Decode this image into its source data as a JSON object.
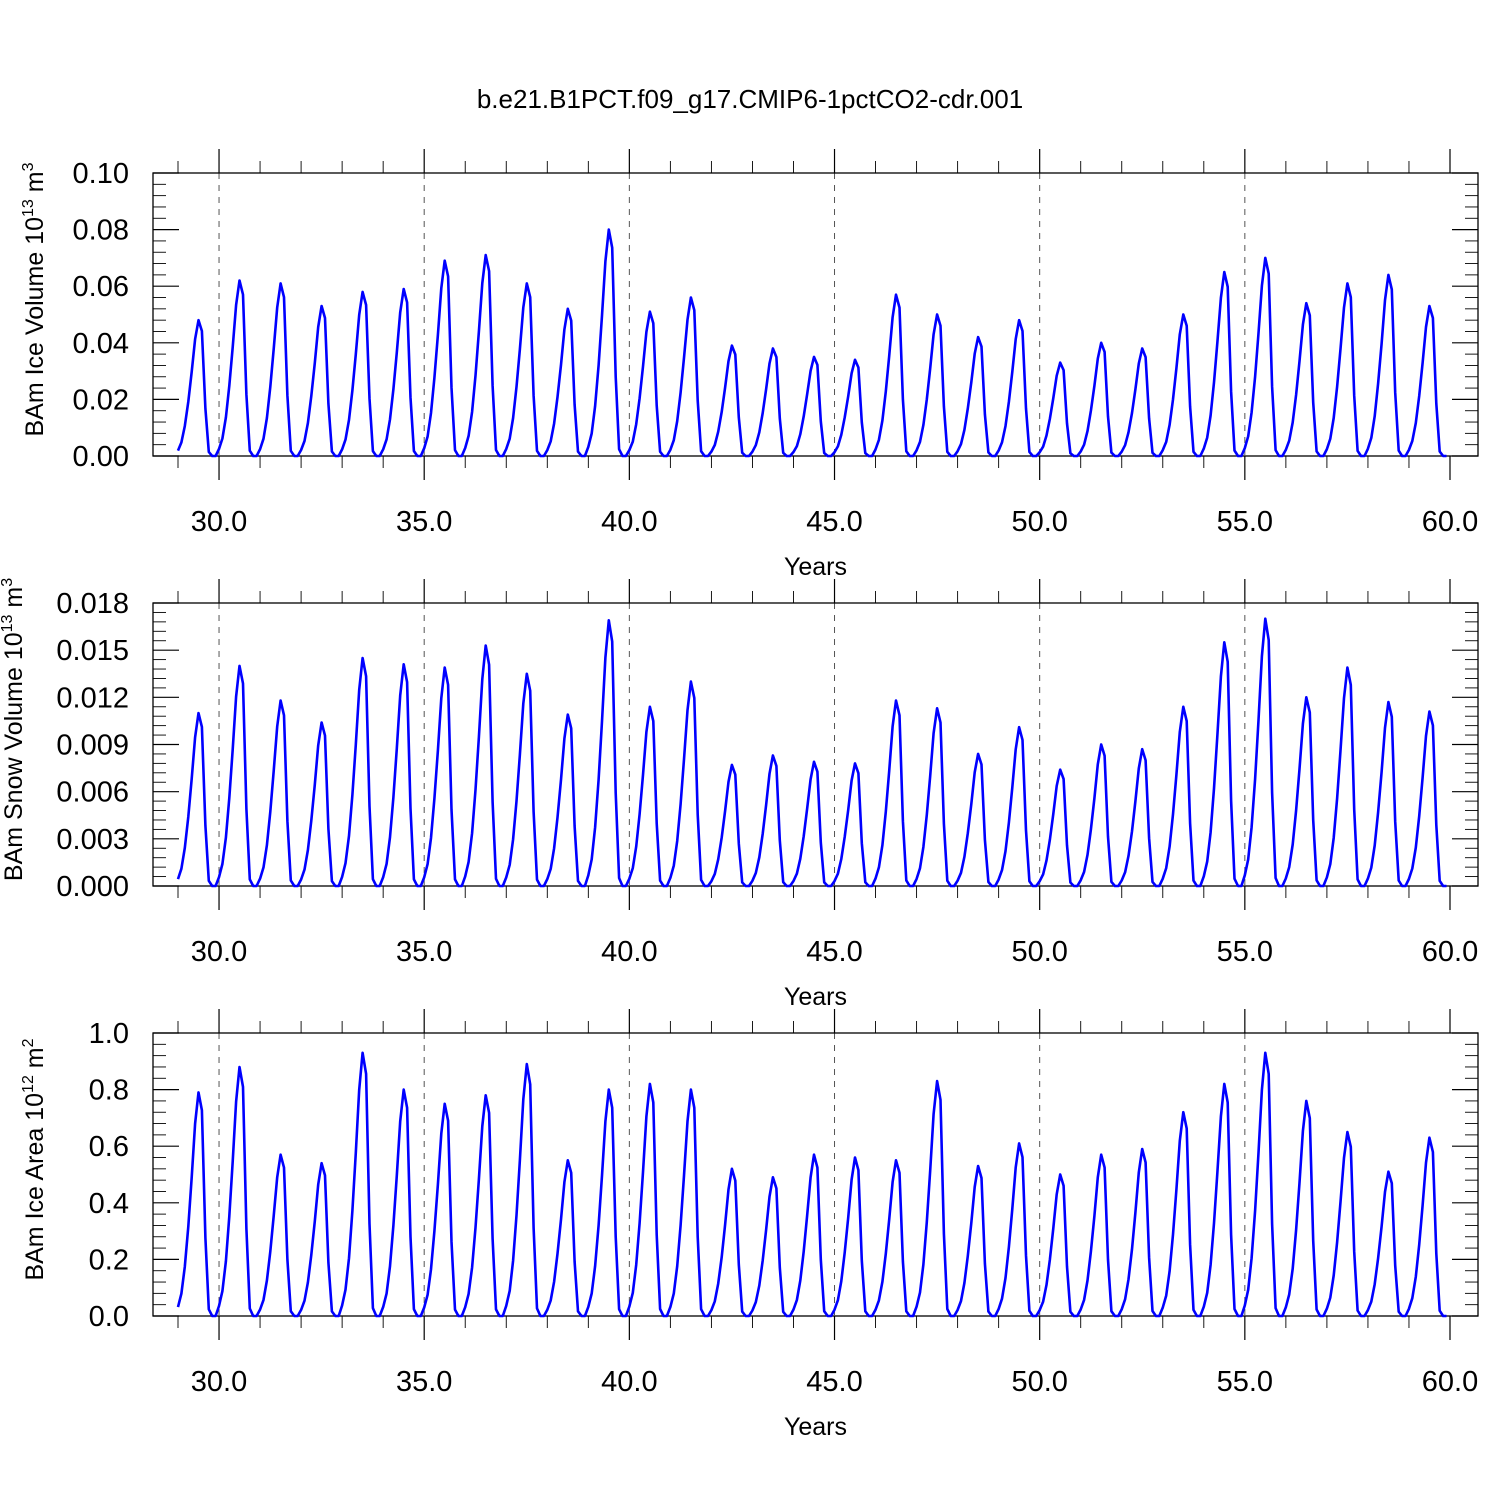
{
  "title": "b.e21.B1PCT.f09_g17.CMIP6-1pctCO2-cdr.001",
  "chart_data": [
    {
      "type": "line",
      "ylabel": "BAm Ice Volume 10",
      "ylabel_sup": "13",
      "ylabel_unit": " m",
      "ylabel_unit_sup": "3",
      "xlabel": "Years",
      "xlim": [
        29.0,
        60.0
      ],
      "ylim": [
        0.0,
        0.1
      ],
      "yticks": [
        0.0,
        0.02,
        0.04,
        0.06,
        0.08,
        0.1
      ],
      "ytick_labels": [
        "0.00",
        "0.02",
        "0.04",
        "0.06",
        "0.08",
        "0.10"
      ],
      "xticks": [
        30,
        35,
        40,
        45,
        50,
        55,
        60
      ],
      "xtick_labels": [
        "30.0",
        "35.0",
        "40.0",
        "45.0",
        "50.0",
        "55.0",
        "60.0"
      ],
      "grid_x": [
        30,
        35,
        40,
        45,
        50,
        55
      ],
      "start": 29.0,
      "step": 0.08333,
      "peaks": [
        0.048,
        0.062,
        0.061,
        0.053,
        0.058,
        0.059,
        0.069,
        0.071,
        0.061,
        0.052,
        0.08,
        0.051,
        0.056,
        0.039,
        0.038,
        0.035,
        0.034,
        0.057,
        0.05,
        0.042,
        0.048,
        0.033,
        0.04,
        0.038,
        0.05,
        0.065,
        0.07,
        0.054,
        0.061,
        0.064,
        0.053
      ],
      "series": [
        {
          "color": "#0000ff"
        }
      ]
    },
    {
      "type": "line",
      "ylabel": "BAm Snow Volume 10",
      "ylabel_sup": "13",
      "ylabel_unit": " m",
      "ylabel_unit_sup": "3",
      "xlabel": "Years",
      "xlim": [
        29.0,
        60.0
      ],
      "ylim": [
        0.0,
        0.018
      ],
      "yticks": [
        0.0,
        0.003,
        0.006,
        0.009,
        0.012,
        0.015,
        0.018
      ],
      "ytick_labels": [
        "0.000",
        "0.003",
        "0.006",
        "0.009",
        "0.012",
        "0.015",
        "0.018"
      ],
      "xticks": [
        30,
        35,
        40,
        45,
        50,
        55,
        60
      ],
      "xtick_labels": [
        "30.0",
        "35.0",
        "40.0",
        "45.0",
        "50.0",
        "55.0",
        "60.0"
      ],
      "grid_x": [
        30,
        35,
        40,
        45,
        50,
        55
      ],
      "start": 29.0,
      "step": 0.08333,
      "peaks": [
        0.011,
        0.014,
        0.0118,
        0.0104,
        0.0145,
        0.0141,
        0.0139,
        0.0153,
        0.0135,
        0.0109,
        0.0169,
        0.0114,
        0.013,
        0.0077,
        0.0083,
        0.0079,
        0.0078,
        0.0118,
        0.0113,
        0.0084,
        0.0101,
        0.0074,
        0.009,
        0.0087,
        0.0114,
        0.0155,
        0.017,
        0.012,
        0.0139,
        0.0117,
        0.0111
      ],
      "series": [
        {
          "color": "#0000ff"
        }
      ]
    },
    {
      "type": "line",
      "ylabel": "BAm Ice Area 10",
      "ylabel_sup": "12",
      "ylabel_unit": " m",
      "ylabel_unit_sup": "2",
      "xlabel": "Years",
      "xlim": [
        29.0,
        60.0
      ],
      "ylim": [
        0.0,
        1.0
      ],
      "yticks": [
        0.0,
        0.2,
        0.4,
        0.6,
        0.8,
        1.0
      ],
      "ytick_labels": [
        "0.0",
        "0.2",
        "0.4",
        "0.6",
        "0.8",
        "1.0"
      ],
      "xticks": [
        30,
        35,
        40,
        45,
        50,
        55,
        60
      ],
      "xtick_labels": [
        "30.0",
        "35.0",
        "40.0",
        "45.0",
        "50.0",
        "55.0",
        "60.0"
      ],
      "grid_x": [
        30,
        35,
        40,
        45,
        50,
        55
      ],
      "start": 29.0,
      "step": 0.08333,
      "peaks": [
        0.79,
        0.88,
        0.57,
        0.54,
        0.93,
        0.8,
        0.75,
        0.78,
        0.89,
        0.55,
        0.8,
        0.82,
        0.8,
        0.52,
        0.49,
        0.57,
        0.56,
        0.55,
        0.83,
        0.53,
        0.61,
        0.5,
        0.57,
        0.59,
        0.72,
        0.82,
        0.93,
        0.76,
        0.65,
        0.51,
        0.63
      ],
      "series": [
        {
          "color": "#0000ff"
        }
      ]
    }
  ]
}
